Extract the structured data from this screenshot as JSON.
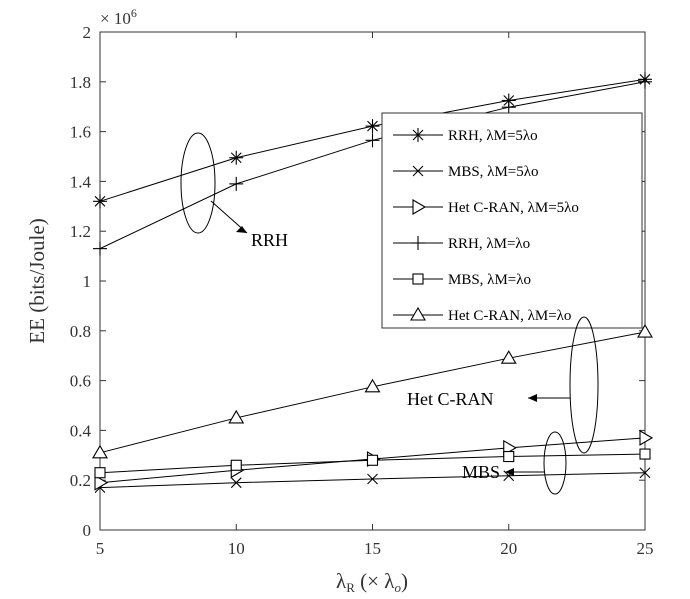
{
  "chart_data": {
    "type": "line",
    "xlabel": "λR (× λo)",
    "ylabel": "EE (bits/Joule)",
    "y_multiplier": "× 10^6",
    "x": [
      5,
      10,
      15,
      20,
      25
    ],
    "xlim": [
      5,
      25
    ],
    "ylim": [
      0,
      2
    ],
    "x_ticks": [
      "5",
      "10",
      "15",
      "20",
      "25"
    ],
    "y_ticks": [
      "0",
      "0.2",
      "0.4",
      "0.6",
      "0.8",
      "1",
      "1.2",
      "1.4",
      "1.6",
      "1.8",
      "2"
    ],
    "grid": false,
    "legend_position": "right",
    "series": [
      {
        "name": "RRH, λM=5λo",
        "marker": "asterisk",
        "values": [
          1.32,
          1.495,
          1.622,
          1.725,
          1.81
        ]
      },
      {
        "name": "MBS, λM=5λo",
        "marker": "x",
        "values": [
          0.17,
          0.19,
          0.205,
          0.218,
          0.23
        ]
      },
      {
        "name": "Het C-RAN, λM=5λo",
        "marker": "triangle-right",
        "values": [
          0.19,
          0.24,
          0.285,
          0.33,
          0.37
        ]
      },
      {
        "name": "RRH, λM=λo",
        "marker": "plus",
        "values": [
          1.13,
          1.39,
          1.565,
          1.698,
          1.8
        ]
      },
      {
        "name": "MBS, λM=λo",
        "marker": "square",
        "values": [
          0.23,
          0.26,
          0.28,
          0.295,
          0.305
        ]
      },
      {
        "name": "Het C-RAN, λM=λo",
        "marker": "triangle-up",
        "values": [
          0.31,
          0.45,
          0.575,
          0.69,
          0.795
        ]
      }
    ],
    "annotations": [
      "RRH",
      "Het C-RAN",
      "MBS"
    ]
  }
}
